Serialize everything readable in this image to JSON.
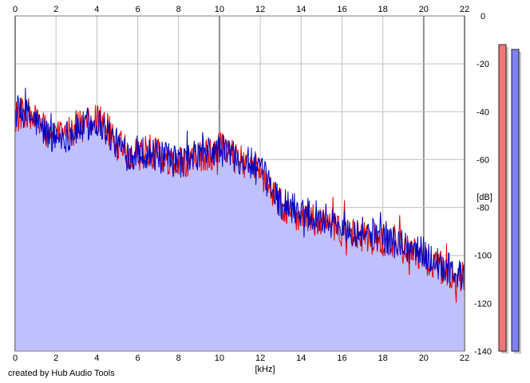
{
  "credit": "created by Hub Audio Tools",
  "colors": {
    "background": "#ffffff",
    "plot_background": "#ffffff",
    "grid": "#c0c0c0",
    "grid_dark": "#909090",
    "fill": "#c0c0ff",
    "left_channel": "#e00000",
    "right_channel": "#0000c0",
    "left_meter": "#f07878",
    "right_meter": "#8080f0",
    "meter_shadow": "#c8c8c8"
  },
  "chart_data": {
    "type": "line",
    "title": "",
    "xlabel": "[kHz]",
    "ylabel": "[dB]",
    "xlim": [
      0,
      22
    ],
    "ylim": [
      -140,
      0
    ],
    "x_ticks": [
      "0",
      "2",
      "4",
      "6",
      "8",
      "10",
      "12",
      "14",
      "16",
      "18",
      "20",
      "22"
    ],
    "y_ticks": [
      "0",
      "-20",
      "-40",
      "-60",
      "-80",
      "-100",
      "-120",
      "-140"
    ],
    "grid": true,
    "x": [
      0,
      0.5,
      1,
      1.5,
      2,
      2.5,
      3,
      3.5,
      4,
      4.5,
      5,
      5.5,
      6,
      6.5,
      7,
      7.5,
      8,
      8.5,
      9,
      9.5,
      10,
      10.5,
      11,
      11.5,
      12,
      12.5,
      13,
      13.5,
      14,
      14.5,
      15,
      15.5,
      16,
      16.5,
      17,
      17.5,
      18,
      18.5,
      19,
      19.5,
      20,
      20.5,
      21,
      21.5,
      22
    ],
    "series": [
      {
        "channel": "left",
        "color": "#e00000",
        "values": [
          -42,
          -40,
          -43,
          -48,
          -50,
          -49,
          -47,
          -45,
          -43,
          -47,
          -53,
          -57,
          -58,
          -56,
          -58,
          -61,
          -62,
          -60,
          -59,
          -58,
          -55,
          -58,
          -60,
          -62,
          -66,
          -72,
          -79,
          -82,
          -83,
          -85,
          -86,
          -88,
          -90,
          -91,
          -92,
          -93,
          -95,
          -96,
          -97,
          -98,
          -101,
          -104,
          -106,
          -108,
          -110
        ]
      },
      {
        "channel": "right",
        "color": "#0000c0",
        "values": [
          -41,
          -41,
          -44,
          -49,
          -51,
          -50,
          -48,
          -46,
          -44,
          -48,
          -54,
          -58,
          -57,
          -57,
          -59,
          -60,
          -61,
          -60,
          -58,
          -57,
          -56,
          -57,
          -59,
          -62,
          -65,
          -71,
          -78,
          -80,
          -81,
          -82,
          -84,
          -86,
          -88,
          -89,
          -90,
          -91,
          -92,
          -94,
          -96,
          -97,
          -99,
          -102,
          -105,
          -107,
          -109
        ]
      }
    ],
    "meters": {
      "left_peak_db": -12,
      "right_peak_db": -14
    }
  }
}
